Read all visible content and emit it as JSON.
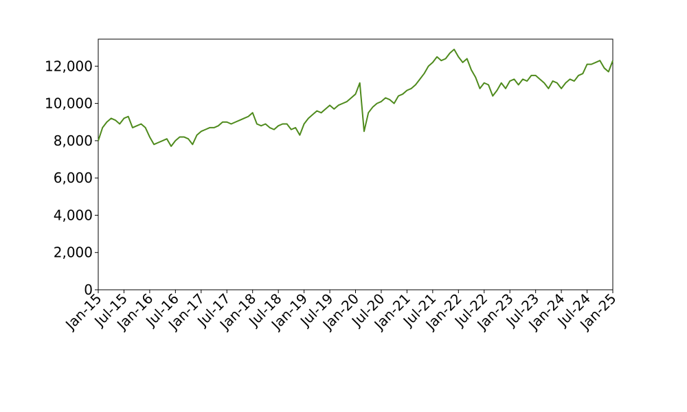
{
  "chart_data": {
    "type": "line",
    "x": [
      "2015-01",
      "2015-02",
      "2015-03",
      "2015-04",
      "2015-05",
      "2015-06",
      "2015-07",
      "2015-08",
      "2015-09",
      "2015-10",
      "2015-11",
      "2015-12",
      "2016-01",
      "2016-02",
      "2016-03",
      "2016-04",
      "2016-05",
      "2016-06",
      "2016-07",
      "2016-08",
      "2016-09",
      "2016-10",
      "2016-11",
      "2016-12",
      "2017-01",
      "2017-02",
      "2017-03",
      "2017-04",
      "2017-05",
      "2017-06",
      "2017-07",
      "2017-08",
      "2017-09",
      "2017-10",
      "2017-11",
      "2017-12",
      "2018-01",
      "2018-02",
      "2018-03",
      "2018-04",
      "2018-05",
      "2018-06",
      "2018-07",
      "2018-08",
      "2018-09",
      "2018-10",
      "2018-11",
      "2018-12",
      "2019-01",
      "2019-02",
      "2019-03",
      "2019-04",
      "2019-05",
      "2019-06",
      "2019-07",
      "2019-08",
      "2019-09",
      "2019-10",
      "2019-11",
      "2019-12",
      "2020-01",
      "2020-02",
      "2020-03",
      "2020-04",
      "2020-05",
      "2020-06",
      "2020-07",
      "2020-08",
      "2020-09",
      "2020-10",
      "2020-11",
      "2020-12",
      "2021-01",
      "2021-02",
      "2021-03",
      "2021-04",
      "2021-05",
      "2021-06",
      "2021-07",
      "2021-08",
      "2021-09",
      "2021-10",
      "2021-11",
      "2021-12",
      "2022-01",
      "2022-02",
      "2022-03",
      "2022-04",
      "2022-05",
      "2022-06",
      "2022-07",
      "2022-08",
      "2022-09",
      "2022-10",
      "2022-11",
      "2022-12",
      "2023-01",
      "2023-02",
      "2023-03",
      "2023-04",
      "2023-05",
      "2023-06",
      "2023-07",
      "2023-08",
      "2023-09",
      "2023-10",
      "2023-11",
      "2023-12",
      "2024-01",
      "2024-02",
      "2024-03",
      "2024-04",
      "2024-05",
      "2024-06",
      "2024-07",
      "2024-08",
      "2024-09",
      "2024-10",
      "2024-11",
      "2024-12",
      "2025-01"
    ],
    "series": [
      {
        "color": "#4e8a1c",
        "values": [
          8000,
          8700,
          9000,
          9200,
          9100,
          8900,
          9200,
          9300,
          8700,
          8800,
          8900,
          8700,
          8200,
          7800,
          7900,
          8000,
          8100,
          7700,
          8000,
          8200,
          8200,
          8100,
          7800,
          8300,
          8500,
          8600,
          8700,
          8700,
          8800,
          9000,
          9000,
          8900,
          9000,
          9100,
          9200,
          9300,
          9500,
          8900,
          8800,
          8900,
          8700,
          8600,
          8800,
          8900,
          8900,
          8600,
          8700,
          8300,
          8900,
          9200,
          9400,
          9600,
          9500,
          9700,
          9900,
          9700,
          9900,
          10000,
          10100,
          10300,
          10500,
          11100,
          8500,
          9500,
          9800,
          10000,
          10100,
          10300,
          10200,
          10000,
          10400,
          10500,
          10700,
          10800,
          11000,
          11300,
          11600,
          12000,
          12200,
          12500,
          12300,
          12400,
          12700,
          12900,
          12500,
          12200,
          12400,
          11800,
          11400,
          10800,
          11100,
          11000,
          10400,
          10700,
          11100,
          10800,
          11200,
          11300,
          11000,
          11300,
          11200,
          11500,
          11500,
          11300,
          11100,
          10800,
          11200,
          11100,
          10800,
          11100,
          11300,
          11200,
          11500,
          11600,
          12100,
          12100,
          12200,
          12300,
          11900,
          11700,
          12300
        ]
      }
    ],
    "xlim": [
      "2015-01",
      "2025-01"
    ],
    "xticks": [
      {
        "value": "2015-01",
        "label": "Jan-15"
      },
      {
        "value": "2015-07",
        "label": "Jul-15"
      },
      {
        "value": "2016-01",
        "label": "Jan-16"
      },
      {
        "value": "2016-07",
        "label": "Jul-16"
      },
      {
        "value": "2017-01",
        "label": "Jan-17"
      },
      {
        "value": "2017-07",
        "label": "Jul-17"
      },
      {
        "value": "2018-01",
        "label": "Jan-18"
      },
      {
        "value": "2018-07",
        "label": "Jul-18"
      },
      {
        "value": "2019-01",
        "label": "Jan-19"
      },
      {
        "value": "2019-07",
        "label": "Jul-19"
      },
      {
        "value": "2020-01",
        "label": "Jan-20"
      },
      {
        "value": "2020-07",
        "label": "Jul-20"
      },
      {
        "value": "2021-01",
        "label": "Jan-21"
      },
      {
        "value": "2021-07",
        "label": "Jul-21"
      },
      {
        "value": "2022-01",
        "label": "Jan-22"
      },
      {
        "value": "2022-07",
        "label": "Jul-22"
      },
      {
        "value": "2023-01",
        "label": "Jan-23"
      },
      {
        "value": "2023-07",
        "label": "Jul-23"
      },
      {
        "value": "2024-01",
        "label": "Jan-24"
      },
      {
        "value": "2024-07",
        "label": "Jul-24"
      },
      {
        "value": "2025-01",
        "label": "Jan-25"
      }
    ],
    "ylim": [
      0,
      13450
    ],
    "yticks": [
      0,
      {
        "value": 2000,
        "label": "2,000"
      },
      {
        "value": 4000,
        "label": "4,000"
      },
      {
        "value": 6000,
        "label": "6,000"
      },
      {
        "value": 8000,
        "label": "8,000"
      },
      {
        "value": 10000,
        "label": "10,000"
      },
      {
        "value": 12000,
        "label": "12,000"
      }
    ],
    "grid": false
  }
}
